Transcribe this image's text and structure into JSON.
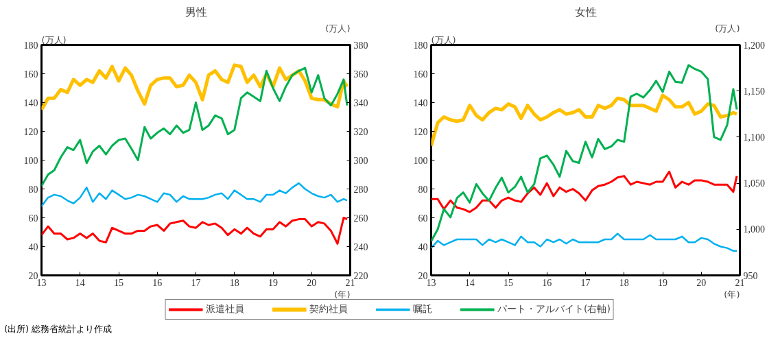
{
  "chart_data": [
    {
      "type": "line",
      "title": "男性",
      "ylabel": "(万人)",
      "y2label": "(万人)",
      "xlabel": "(年)",
      "legend": "bottom",
      "annotations": [
        "(出所) 総務省統計より作成"
      ],
      "x": [
        13,
        13.17,
        13.33,
        13.5,
        13.67,
        13.83,
        14,
        14.17,
        14.33,
        14.5,
        14.67,
        14.83,
        15,
        15.17,
        15.33,
        15.5,
        15.67,
        15.83,
        16,
        16.17,
        16.33,
        16.5,
        16.67,
        16.83,
        17,
        17.17,
        17.33,
        17.5,
        17.67,
        17.83,
        18,
        18.17,
        18.33,
        18.5,
        18.67,
        18.83,
        19,
        19.17,
        19.33,
        19.5,
        19.67,
        19.83,
        20,
        20.17,
        20.33,
        20.5,
        20.67,
        20.83,
        20.92
      ],
      "xlim": [
        13,
        21
      ],
      "xticks": [
        13,
        14,
        15,
        16,
        17,
        18,
        19,
        20,
        21
      ],
      "ylim": [
        20,
        180
      ],
      "yticks": [
        20,
        40,
        60,
        80,
        100,
        120,
        140,
        160,
        180
      ],
      "y2lim": [
        220,
        380
      ],
      "y2ticks": [
        220,
        240,
        260,
        280,
        300,
        320,
        340,
        360,
        380
      ],
      "series": [
        {
          "name": "派遣社員",
          "color": "#ff0000",
          "values": [
            48,
            54,
            49,
            49,
            45,
            46,
            49,
            46,
            49,
            44,
            43,
            53,
            51,
            49,
            49,
            51,
            51,
            54,
            55,
            51,
            56,
            57,
            58,
            54,
            53,
            57,
            55,
            56,
            53,
            48,
            52,
            49,
            53,
            49,
            47,
            52,
            52,
            57,
            54,
            58,
            59,
            59,
            54,
            57,
            56,
            51,
            42,
            60,
            59
          ]
        },
        {
          "name": "契約社員",
          "color": "#ffc000",
          "values": [
            135,
            143,
            143,
            149,
            147,
            156,
            152,
            156,
            154,
            162,
            157,
            165,
            155,
            164,
            159,
            148,
            139,
            152,
            156,
            157,
            157,
            151,
            152,
            159,
            154,
            142,
            159,
            162,
            156,
            154,
            166,
            165,
            154,
            159,
            151,
            160,
            151,
            164,
            156,
            159,
            162,
            155,
            143,
            142,
            142,
            139,
            137,
            155,
            151
          ]
        },
        {
          "name": "嘱託",
          "color": "#00b0f0",
          "values": [
            68,
            74,
            76,
            75,
            72,
            70,
            74,
            81,
            71,
            77,
            73,
            79,
            76,
            73,
            74,
            76,
            75,
            73,
            71,
            77,
            76,
            71,
            75,
            73,
            73,
            73,
            74,
            76,
            77,
            73,
            79,
            76,
            73,
            73,
            71,
            76,
            76,
            79,
            77,
            81,
            84,
            80,
            77,
            75,
            74,
            76,
            71,
            73,
            72
          ]
        },
        {
          "name": "パート・アルバイト(右軸)",
          "color": "#00b050",
          "axis": "y2",
          "values": [
            282,
            290,
            293,
            302,
            309,
            307,
            314,
            298,
            306,
            310,
            304,
            310,
            314,
            315,
            308,
            300,
            323,
            315,
            319,
            322,
            318,
            324,
            319,
            321,
            340,
            321,
            324,
            331,
            329,
            318,
            321,
            343,
            347,
            344,
            341,
            362,
            350,
            341,
            351,
            359,
            362,
            364,
            347,
            359,
            343,
            338,
            346,
            356,
            338
          ]
        }
      ]
    },
    {
      "type": "line",
      "title": "女性",
      "ylabel": "(万人)",
      "y2label": "(万人)",
      "xlabel": "(年)",
      "x": [
        13,
        13.17,
        13.33,
        13.5,
        13.67,
        13.83,
        14,
        14.17,
        14.33,
        14.5,
        14.67,
        14.83,
        15,
        15.17,
        15.33,
        15.5,
        15.67,
        15.83,
        16,
        16.17,
        16.33,
        16.5,
        16.67,
        16.83,
        17,
        17.17,
        17.33,
        17.5,
        17.67,
        17.83,
        18,
        18.17,
        18.33,
        18.5,
        18.67,
        18.83,
        19,
        19.17,
        19.33,
        19.5,
        19.67,
        19.83,
        20,
        20.17,
        20.33,
        20.5,
        20.67,
        20.83,
        20.92
      ],
      "xlim": [
        13,
        21
      ],
      "xticks": [
        13,
        14,
        15,
        16,
        17,
        18,
        19,
        20,
        21
      ],
      "ylim": [
        20,
        180
      ],
      "yticks": [
        20,
        40,
        60,
        80,
        100,
        120,
        140,
        160,
        180
      ],
      "y2lim": [
        950,
        1200
      ],
      "y2ticks": [
        950,
        {
          "value": 1000,
          "label": "1,000"
        },
        {
          "value": 1050,
          "label": "1,050"
        },
        {
          "value": 1100,
          "label": "1,100"
        },
        {
          "value": 1150,
          "label": "1,150"
        },
        {
          "value": 1200,
          "label": "1,200"
        }
      ],
      "series": [
        {
          "color": "#ff0000",
          "values": [
            73,
            73,
            66,
            72,
            67,
            66,
            64,
            67,
            72,
            72,
            67,
            72,
            74,
            72,
            71,
            77,
            81,
            76,
            84,
            75,
            81,
            78,
            80,
            77,
            72,
            79,
            82,
            83,
            85,
            88,
            89,
            83,
            85,
            84,
            83,
            85,
            85,
            92,
            81,
            85,
            83,
            86,
            86,
            85,
            83,
            83,
            83,
            78,
            89
          ]
        },
        {
          "color": "#ffc000",
          "values": [
            110,
            126,
            130,
            128,
            127,
            128,
            138,
            131,
            128,
            133,
            136,
            135,
            139,
            137,
            129,
            138,
            132,
            128,
            130,
            133,
            135,
            132,
            133,
            135,
            130,
            130,
            138,
            136,
            138,
            143,
            142,
            138,
            138,
            138,
            136,
            134,
            145,
            142,
            137,
            137,
            140,
            132,
            134,
            139,
            138,
            130,
            131,
            133,
            132
          ]
        },
        {
          "color": "#00b0f0",
          "values": [
            39,
            44,
            41,
            43,
            45,
            45,
            45,
            45,
            41,
            45,
            43,
            45,
            43,
            41,
            47,
            43,
            43,
            40,
            45,
            43,
            45,
            42,
            45,
            43,
            43,
            43,
            43,
            45,
            45,
            49,
            45,
            45,
            45,
            45,
            48,
            45,
            45,
            45,
            45,
            47,
            43,
            43,
            46,
            45,
            42,
            40,
            39,
            37,
            37
          ]
        },
        {
          "color": "#00b050",
          "axis": "y2",
          "values": [
            987,
            1000,
            1022,
            1013,
            1034,
            1040,
            1029,
            1049,
            1039,
            1031,
            1045,
            1056,
            1040,
            1046,
            1057,
            1040,
            1049,
            1077,
            1080,
            1070,
            1057,
            1085,
            1074,
            1072,
            1095,
            1078,
            1098,
            1087,
            1090,
            1097,
            1095,
            1144,
            1147,
            1143,
            1151,
            1161,
            1149,
            1171,
            1160,
            1159,
            1178,
            1174,
            1171,
            1163,
            1100,
            1097,
            1113,
            1152,
            1130
          ]
        }
      ]
    }
  ]
}
